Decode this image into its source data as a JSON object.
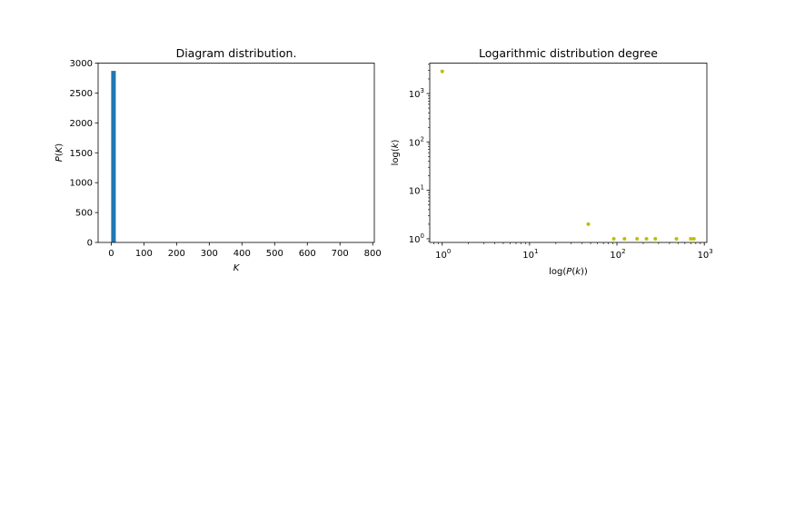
{
  "chart_data": [
    {
      "type": "bar",
      "title": "Diagram distribution.",
      "xlabel": "K",
      "ylabel": "P(K)",
      "xlim": [
        -40,
        805
      ],
      "ylim": [
        0,
        3000
      ],
      "xticks": [
        0,
        100,
        200,
        300,
        400,
        500,
        600,
        700,
        800
      ],
      "yticks": [
        0,
        500,
        1000,
        1500,
        2000,
        2500,
        3000
      ],
      "bars": [
        {
          "x_start": 0,
          "x_end": 14,
          "value": 2870
        }
      ],
      "color": "#1f77b4",
      "grid": false
    },
    {
      "type": "scatter",
      "title": "Logarithmic distribution degree",
      "xlabel": "log(P(k))",
      "ylabel": "log(k)",
      "xscale": "log",
      "yscale": "log",
      "xlim": [
        0.72,
        1070
      ],
      "ylim": [
        0.84,
        4250
      ],
      "xticks": [
        "10^0",
        "10^1",
        "10^2",
        "10^3"
      ],
      "yticks": [
        "10^0",
        "10^1",
        "10^2",
        "10^3"
      ],
      "points": [
        {
          "x": 1,
          "y": 2870
        },
        {
          "x": 47,
          "y": 2
        },
        {
          "x": 92,
          "y": 1
        },
        {
          "x": 122,
          "y": 1
        },
        {
          "x": 170,
          "y": 1
        },
        {
          "x": 218,
          "y": 1
        },
        {
          "x": 275,
          "y": 1
        },
        {
          "x": 480,
          "y": 1
        },
        {
          "x": 700,
          "y": 1
        },
        {
          "x": 760,
          "y": 1
        }
      ],
      "color": "#bfbf00",
      "grid": false
    }
  ]
}
